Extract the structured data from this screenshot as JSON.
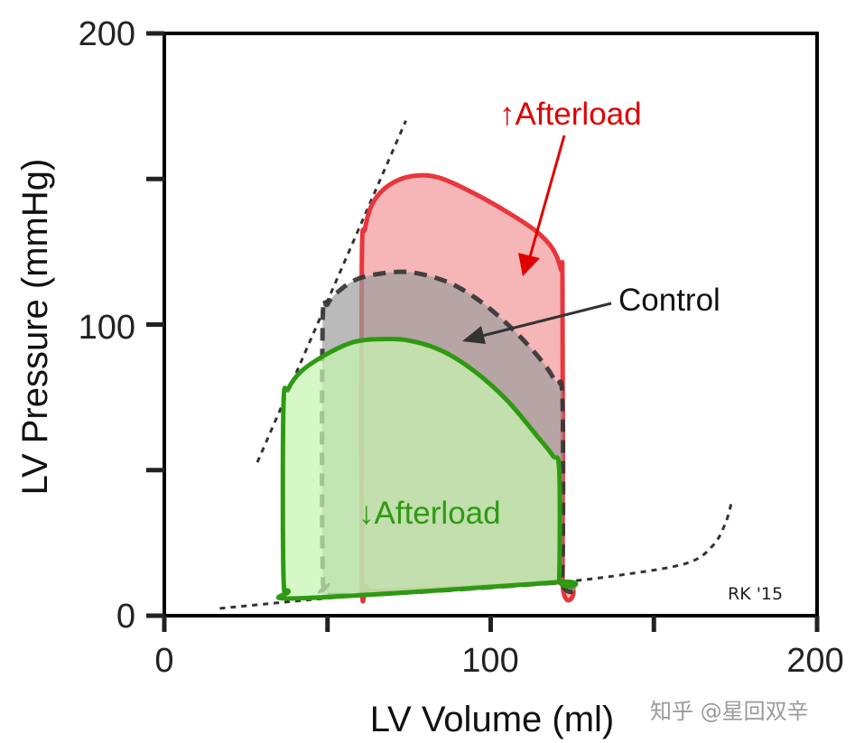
{
  "chart_data": {
    "type": "line",
    "xlabel": "LV Volume (ml)",
    "ylabel": "LV Pressure (mmHg)",
    "xlim": [
      0,
      200
    ],
    "ylim": [
      0,
      200
    ],
    "x_ticks": [
      "0",
      "100",
      "200"
    ],
    "y_ticks": [
      "0",
      "100",
      "200"
    ],
    "minor_ticks": [
      50,
      150
    ],
    "grid": false,
    "legend": "none",
    "series": [
      {
        "name": "↑Afterload",
        "color": "#e8363c",
        "fill": "#f4a8aa",
        "style": "solid",
        "points": [
          [
            66,
            8.5
          ],
          [
            62,
            10
          ],
          [
            60.5,
            14
          ],
          [
            60.5,
            120
          ],
          [
            61.5,
            133
          ],
          [
            64,
            142
          ],
          [
            69,
            148
          ],
          [
            76,
            151
          ],
          [
            84,
            150.5
          ],
          [
            95,
            145
          ],
          [
            106,
            138
          ],
          [
            114,
            132
          ],
          [
            119,
            126
          ],
          [
            121.5,
            119
          ],
          [
            122,
            112
          ],
          [
            122,
            13
          ],
          [
            121,
            11.5
          ]
        ]
      },
      {
        "name": "Control",
        "color": "#333333",
        "fill": "#9c9c9c",
        "style": "dashed",
        "points": [
          [
            54,
            7
          ],
          [
            50,
            11
          ],
          [
            48.5,
            17
          ],
          [
            48.5,
            100
          ],
          [
            50,
            107
          ],
          [
            54,
            112
          ],
          [
            60,
            116
          ],
          [
            70,
            118
          ],
          [
            78,
            117.5
          ],
          [
            88,
            114
          ],
          [
            98,
            107
          ],
          [
            108,
            97
          ],
          [
            116,
            87
          ],
          [
            120,
            80
          ],
          [
            122,
            74
          ],
          [
            122,
            13
          ],
          [
            121,
            11.5
          ]
        ]
      },
      {
        "name": "↓Afterload",
        "color": "#2e9a12",
        "fill": "#c6f5b0",
        "style": "solid",
        "points": [
          [
            42,
            6
          ],
          [
            38,
            8.5
          ],
          [
            36.5,
            14
          ],
          [
            36.5,
            72
          ],
          [
            38,
            78
          ],
          [
            42,
            84
          ],
          [
            50,
            90
          ],
          [
            58,
            94
          ],
          [
            66,
            95
          ],
          [
            75,
            94.5
          ],
          [
            85,
            91
          ],
          [
            95,
            84
          ],
          [
            105,
            74
          ],
          [
            114,
            62
          ],
          [
            119,
            55
          ],
          [
            121,
            50
          ],
          [
            121,
            13
          ],
          [
            120,
            11.5
          ]
        ]
      }
    ],
    "reference_lines": [
      {
        "role": "ESPVR",
        "style": "dotted",
        "points": [
          [
            28.5,
            52.7
          ],
          [
            74,
            170
          ]
        ]
      },
      {
        "role": "EDPVR",
        "style": "dotted",
        "points": [
          [
            17,
            2.5
          ],
          [
            60,
            7
          ],
          [
            100,
            10
          ],
          [
            121,
            11.5
          ],
          [
            140,
            14
          ],
          [
            160,
            18
          ],
          [
            168,
            24
          ],
          [
            172,
            32
          ],
          [
            174,
            40
          ]
        ]
      }
    ],
    "annotations": {
      "increased_afterload": "↑Afterload",
      "control": "Control",
      "decreased_afterload": "↓Afterload"
    }
  },
  "signature": "RK '15",
  "watermark": "知乎 @星回双辛"
}
